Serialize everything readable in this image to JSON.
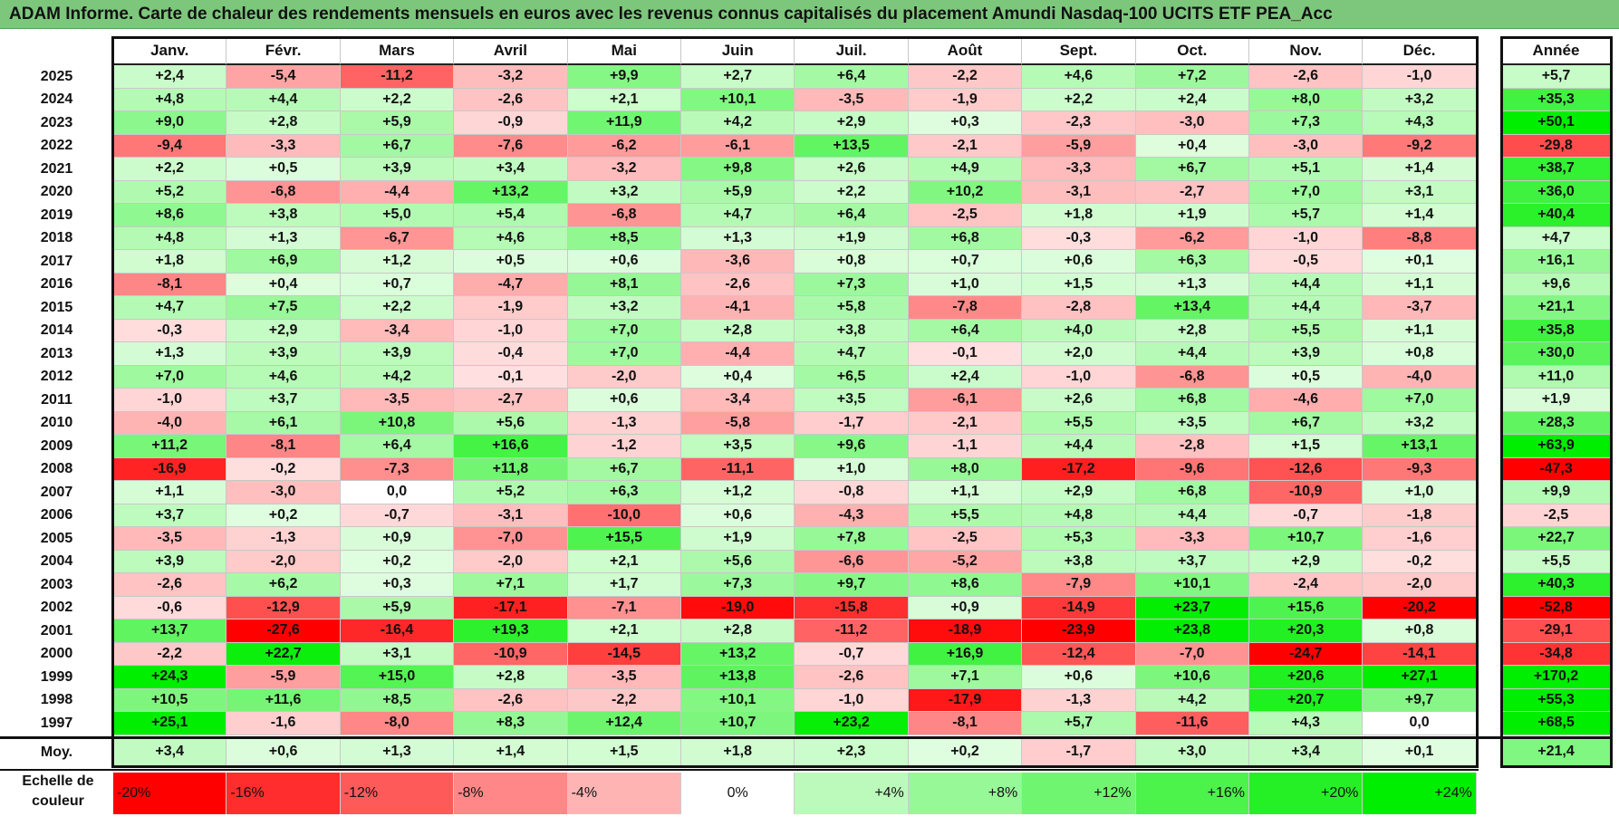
{
  "title": "ADAM Informe. Carte de chaleur des rendements mensuels en euros avec les revenus connus capitalisés du placement Amundi Nasdaq-100 UCITS ETF PEA_Acc",
  "chart_data": {
    "type": "heatmap",
    "months": [
      "Janv.",
      "Févr.",
      "Mars",
      "Avril",
      "Mai",
      "Juin",
      "Juil.",
      "Août",
      "Sept.",
      "Oct.",
      "Nov.",
      "Déc."
    ],
    "year_header": "Année",
    "rows": [
      {
        "year": "2025",
        "values": [
          "+2,4",
          "-5,4",
          "-11,2",
          "-3,2",
          "+9,9",
          "+2,7",
          "+6,4",
          "-2,2",
          "+4,6",
          "+7,2",
          "-2,6",
          "-1,0"
        ],
        "annual": "+5,7"
      },
      {
        "year": "2024",
        "values": [
          "+4,8",
          "+4,4",
          "+2,2",
          "-2,6",
          "+2,1",
          "+10,1",
          "-3,5",
          "-1,9",
          "+2,2",
          "+2,4",
          "+8,0",
          "+3,2"
        ],
        "annual": "+35,3"
      },
      {
        "year": "2023",
        "values": [
          "+9,0",
          "+2,8",
          "+5,9",
          "-0,9",
          "+11,9",
          "+4,2",
          "+2,9",
          "+0,3",
          "-2,3",
          "-3,0",
          "+7,3",
          "+4,3"
        ],
        "annual": "+50,1"
      },
      {
        "year": "2022",
        "values": [
          "-9,4",
          "-3,3",
          "+6,7",
          "-7,6",
          "-6,2",
          "-6,1",
          "+13,5",
          "-2,1",
          "-5,9",
          "+0,4",
          "-3,0",
          "-9,2"
        ],
        "annual": "-29,8"
      },
      {
        "year": "2021",
        "values": [
          "+2,2",
          "+0,5",
          "+3,9",
          "+3,4",
          "-3,2",
          "+9,8",
          "+2,6",
          "+4,9",
          "-3,3",
          "+6,7",
          "+5,1",
          "+1,4"
        ],
        "annual": "+38,7"
      },
      {
        "year": "2020",
        "values": [
          "+5,2",
          "-6,8",
          "-4,4",
          "+13,2",
          "+3,2",
          "+5,9",
          "+2,2",
          "+10,2",
          "-3,1",
          "-2,7",
          "+7,0",
          "+3,1"
        ],
        "annual": "+36,0"
      },
      {
        "year": "2019",
        "values": [
          "+8,6",
          "+3,8",
          "+5,0",
          "+5,4",
          "-6,8",
          "+4,7",
          "+6,4",
          "-2,5",
          "+1,8",
          "+1,9",
          "+5,7",
          "+1,4"
        ],
        "annual": "+40,4"
      },
      {
        "year": "2018",
        "values": [
          "+4,8",
          "+1,3",
          "-6,7",
          "+4,6",
          "+8,5",
          "+1,3",
          "+1,9",
          "+6,8",
          "-0,3",
          "-6,2",
          "-1,0",
          "-8,8"
        ],
        "annual": "+4,7"
      },
      {
        "year": "2017",
        "values": [
          "+1,8",
          "+6,9",
          "+1,2",
          "+0,5",
          "+0,6",
          "-3,6",
          "+0,8",
          "+0,7",
          "+0,6",
          "+6,3",
          "-0,5",
          "+0,1"
        ],
        "annual": "+16,1"
      },
      {
        "year": "2016",
        "values": [
          "-8,1",
          "+0,4",
          "+0,7",
          "-4,7",
          "+8,1",
          "-2,6",
          "+7,3",
          "+1,0",
          "+1,5",
          "+1,3",
          "+4,4",
          "+1,1"
        ],
        "annual": "+9,6"
      },
      {
        "year": "2015",
        "values": [
          "+4,7",
          "+7,5",
          "+2,2",
          "-1,9",
          "+3,2",
          "-4,1",
          "+5,8",
          "-7,8",
          "-2,8",
          "+13,4",
          "+4,4",
          "-3,7"
        ],
        "annual": "+21,1"
      },
      {
        "year": "2014",
        "values": [
          "-0,3",
          "+2,9",
          "-3,4",
          "-1,0",
          "+7,0",
          "+2,8",
          "+3,8",
          "+6,4",
          "+4,0",
          "+2,8",
          "+5,5",
          "+1,1"
        ],
        "annual": "+35,8"
      },
      {
        "year": "2013",
        "values": [
          "+1,3",
          "+3,9",
          "+3,9",
          "-0,4",
          "+7,0",
          "-4,4",
          "+4,7",
          "-0,1",
          "+2,0",
          "+4,4",
          "+3,9",
          "+0,8"
        ],
        "annual": "+30,0"
      },
      {
        "year": "2012",
        "values": [
          "+7,0",
          "+4,6",
          "+4,2",
          "-0,1",
          "-2,0",
          "+0,4",
          "+6,5",
          "+2,4",
          "-1,0",
          "-6,8",
          "+0,5",
          "-4,0"
        ],
        "annual": "+11,0"
      },
      {
        "year": "2011",
        "values": [
          "-1,0",
          "+3,7",
          "-3,5",
          "-2,7",
          "+0,6",
          "-3,4",
          "+3,5",
          "-6,1",
          "+2,6",
          "+6,8",
          "-4,6",
          "+7,0"
        ],
        "annual": "+1,9"
      },
      {
        "year": "2010",
        "values": [
          "-4,0",
          "+6,1",
          "+10,8",
          "+5,6",
          "-1,3",
          "-5,8",
          "-1,7",
          "-2,1",
          "+5,5",
          "+3,5",
          "+6,7",
          "+3,2"
        ],
        "annual": "+28,3"
      },
      {
        "year": "2009",
        "values": [
          "+11,2",
          "-8,1",
          "+6,4",
          "+16,6",
          "-1,2",
          "+3,5",
          "+9,6",
          "-1,1",
          "+4,4",
          "-2,8",
          "+1,5",
          "+13,1"
        ],
        "annual": "+63,9"
      },
      {
        "year": "2008",
        "values": [
          "-16,9",
          "-0,2",
          "-7,3",
          "+11,8",
          "+6,7",
          "-11,1",
          "+1,0",
          "+8,0",
          "-17,2",
          "-9,6",
          "-12,6",
          "-9,3"
        ],
        "annual": "-47,3"
      },
      {
        "year": "2007",
        "values": [
          "+1,1",
          "-3,0",
          "0,0",
          "+5,2",
          "+6,3",
          "+1,2",
          "-0,8",
          "+1,1",
          "+2,9",
          "+6,8",
          "-10,9",
          "+1,0"
        ],
        "annual": "+9,9"
      },
      {
        "year": "2006",
        "values": [
          "+3,7",
          "+0,2",
          "-0,7",
          "-3,1",
          "-10,0",
          "+0,6",
          "-4,3",
          "+5,5",
          "+4,8",
          "+4,4",
          "-0,7",
          "-1,8"
        ],
        "annual": "-2,5"
      },
      {
        "year": "2005",
        "values": [
          "-3,5",
          "-1,3",
          "+0,9",
          "-7,0",
          "+15,5",
          "+1,9",
          "+7,8",
          "-2,5",
          "+5,3",
          "-3,3",
          "+10,7",
          "-1,6"
        ],
        "annual": "+22,7"
      },
      {
        "year": "2004",
        "values": [
          "+3,9",
          "-2,0",
          "+0,2",
          "-2,0",
          "+2,1",
          "+5,6",
          "-6,6",
          "-5,2",
          "+3,8",
          "+3,7",
          "+2,9",
          "-0,2"
        ],
        "annual": "+5,5"
      },
      {
        "year": "2003",
        "values": [
          "-2,6",
          "+6,2",
          "+0,3",
          "+7,1",
          "+1,7",
          "+7,3",
          "+9,7",
          "+8,6",
          "-7,9",
          "+10,1",
          "-2,4",
          "-2,0"
        ],
        "annual": "+40,3"
      },
      {
        "year": "2002",
        "values": [
          "-0,6",
          "-12,9",
          "+5,9",
          "-17,1",
          "-7,1",
          "-19,0",
          "-15,8",
          "+0,9",
          "-14,9",
          "+23,7",
          "+15,6",
          "-20,2"
        ],
        "annual": "-52,8"
      },
      {
        "year": "2001",
        "values": [
          "+13,7",
          "-27,6",
          "-16,4",
          "+19,3",
          "+2,1",
          "+2,8",
          "-11,2",
          "-18,9",
          "-23,9",
          "+23,8",
          "+20,3",
          "+0,8"
        ],
        "annual": "-29,1"
      },
      {
        "year": "2000",
        "values": [
          "-2,2",
          "+22,7",
          "+3,1",
          "-10,9",
          "-14,5",
          "+13,2",
          "-0,7",
          "+16,9",
          "-12,4",
          "-7,0",
          "-24,7",
          "-14,1"
        ],
        "annual": "-34,8"
      },
      {
        "year": "1999",
        "values": [
          "+24,3",
          "-5,9",
          "+15,0",
          "+2,8",
          "-3,5",
          "+13,8",
          "-2,6",
          "+7,1",
          "+0,6",
          "+10,6",
          "+20,6",
          "+27,1"
        ],
        "annual": "+170,2"
      },
      {
        "year": "1998",
        "values": [
          "+10,5",
          "+11,6",
          "+8,5",
          "-2,6",
          "-2,2",
          "+10,1",
          "-1,0",
          "-17,9",
          "-1,3",
          "+4,2",
          "+20,7",
          "+9,7"
        ],
        "annual": "+55,3"
      },
      {
        "year": "1997",
        "values": [
          "+25,1",
          "-1,6",
          "-8,0",
          "+8,3",
          "+12,4",
          "+10,7",
          "+23,2",
          "-8,1",
          "+5,7",
          "-11,6",
          "+4,3",
          "0,0"
        ],
        "annual": "+68,5"
      }
    ],
    "average": {
      "label": "Moy.",
      "values": [
        "+3,4",
        "+0,6",
        "+1,3",
        "+1,4",
        "+1,5",
        "+1,8",
        "+2,3",
        "+0,2",
        "-1,7",
        "+3,0",
        "+3,4",
        "+0,1"
      ],
      "annual": "+21,4"
    },
    "color_scale": {
      "label_line1": "Echelle de",
      "label_line2": "couleur",
      "stops": [
        "-20%",
        "-16%",
        "-12%",
        "-8%",
        "-4%",
        "0%",
        "+4%",
        "+8%",
        "+12%",
        "+16%",
        "+20%",
        "+24%"
      ],
      "stop_values": [
        -20,
        -16,
        -12,
        -8,
        -4,
        0,
        4,
        8,
        12,
        16,
        20,
        24
      ],
      "negative_color": "#ff0000",
      "positive_color": "#00ee00",
      "neutral_color": "#ffffff"
    }
  }
}
